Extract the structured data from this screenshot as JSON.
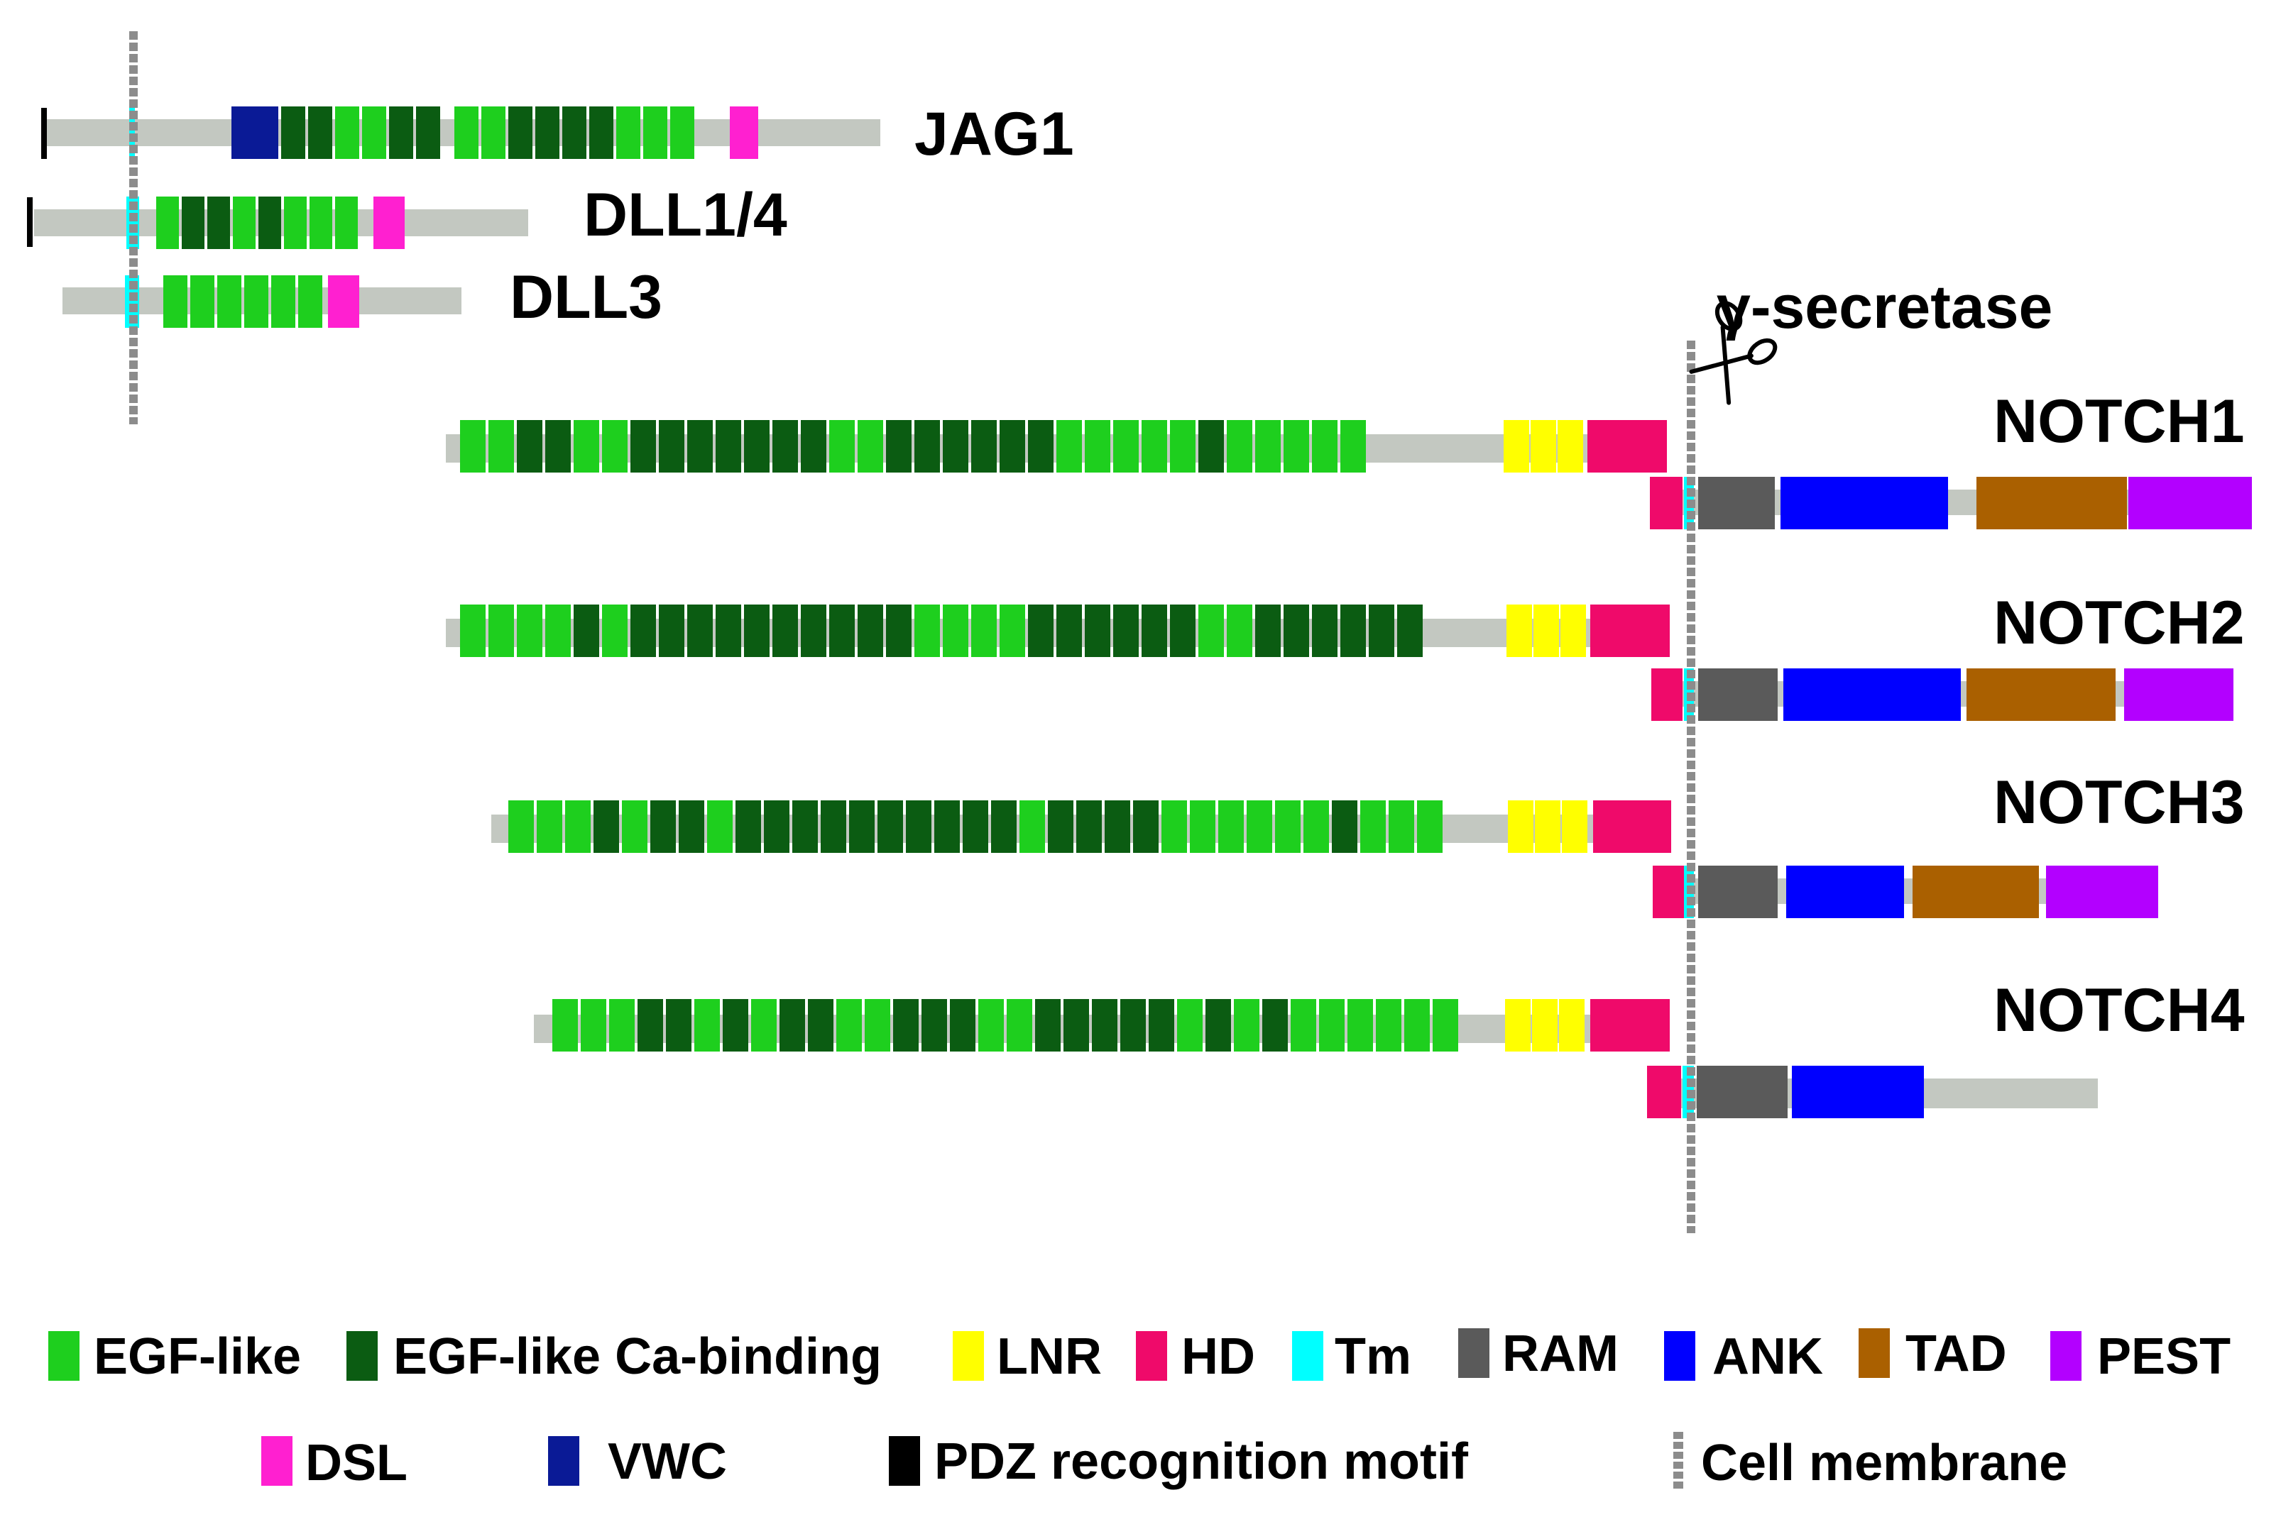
{
  "colors": {
    "egf": "#1ecf1e",
    "egf_ca": "#0b5c12",
    "lnr": "#ffff00",
    "hd": "#ef0a6a",
    "tm": "#00ffff",
    "ram": "#5a5a5a",
    "ank": "#0000ff",
    "tad": "#aa6000",
    "pest": "#b300ff",
    "dsl": "#ff20d0",
    "vwc": "#0a1a96",
    "pdz": "#000000",
    "backbone": "#c3c8c1",
    "membrane": "#8c8c8c"
  },
  "ligands": [
    {
      "name": "JAG1"
    },
    {
      "name": "DLL1/4"
    },
    {
      "name": "DLL3"
    }
  ],
  "receptors": [
    {
      "name": "NOTCH1"
    },
    {
      "name": "NOTCH2"
    },
    {
      "name": "NOTCH3"
    },
    {
      "name": "NOTCH4"
    }
  ],
  "secretase": {
    "label": "γ-secretase",
    "icon": "scissors-icon"
  },
  "legend": [
    {
      "key": "egf",
      "label": "EGF-like"
    },
    {
      "key": "egf_ca",
      "label": "EGF-like Ca-binding"
    },
    {
      "key": "lnr",
      "label": "LNR"
    },
    {
      "key": "hd",
      "label": "HD"
    },
    {
      "key": "tm",
      "label": "Tm"
    },
    {
      "key": "ram",
      "label": "RAM"
    },
    {
      "key": "ank",
      "label": "ANK"
    },
    {
      "key": "tad",
      "label": "TAD"
    },
    {
      "key": "pest",
      "label": "PEST"
    },
    {
      "key": "dsl",
      "label": "DSL"
    },
    {
      "key": "vwc",
      "label": "VWC"
    },
    {
      "key": "pdz",
      "label": "PDZ recognition motif"
    },
    {
      "key": "membrane",
      "label": "Cell membrane"
    }
  ]
}
